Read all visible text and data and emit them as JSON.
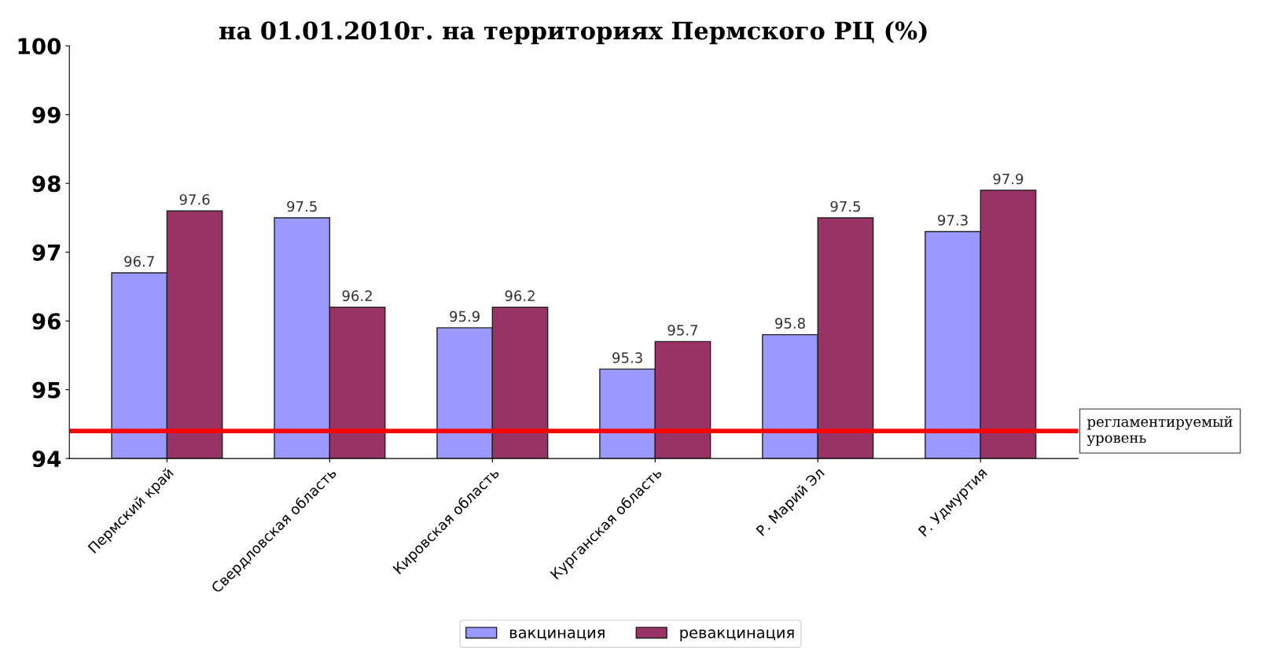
{
  "chart_data": {
    "type": "bar",
    "title": "на 01.01.2010г. на территориях Пермского РЦ (%)",
    "categories": [
      "Пермский край",
      "Свердловская область",
      "Кировская область",
      "Курганская область",
      "Р. Марий Эл",
      "Р. Удмуртия"
    ],
    "series": [
      {
        "name": "вакцинация",
        "color": "#9999ff",
        "values": [
          96.7,
          97.5,
          95.9,
          95.3,
          95.8,
          97.3
        ]
      },
      {
        "name": "ревакцинация",
        "color": "#993366",
        "values": [
          97.6,
          96.2,
          96.2,
          95.7,
          97.5,
          97.9
        ]
      }
    ],
    "ylim": [
      94,
      100
    ],
    "yticks": [
      94,
      95,
      96,
      97,
      98,
      99,
      100
    ],
    "ref_lines": [
      {
        "axis": "y",
        "value": 94.4,
        "label": "регламентируемый уровень",
        "color": "#ff0000"
      }
    ],
    "data_labels": true,
    "grid": false,
    "legend": "bottom"
  }
}
